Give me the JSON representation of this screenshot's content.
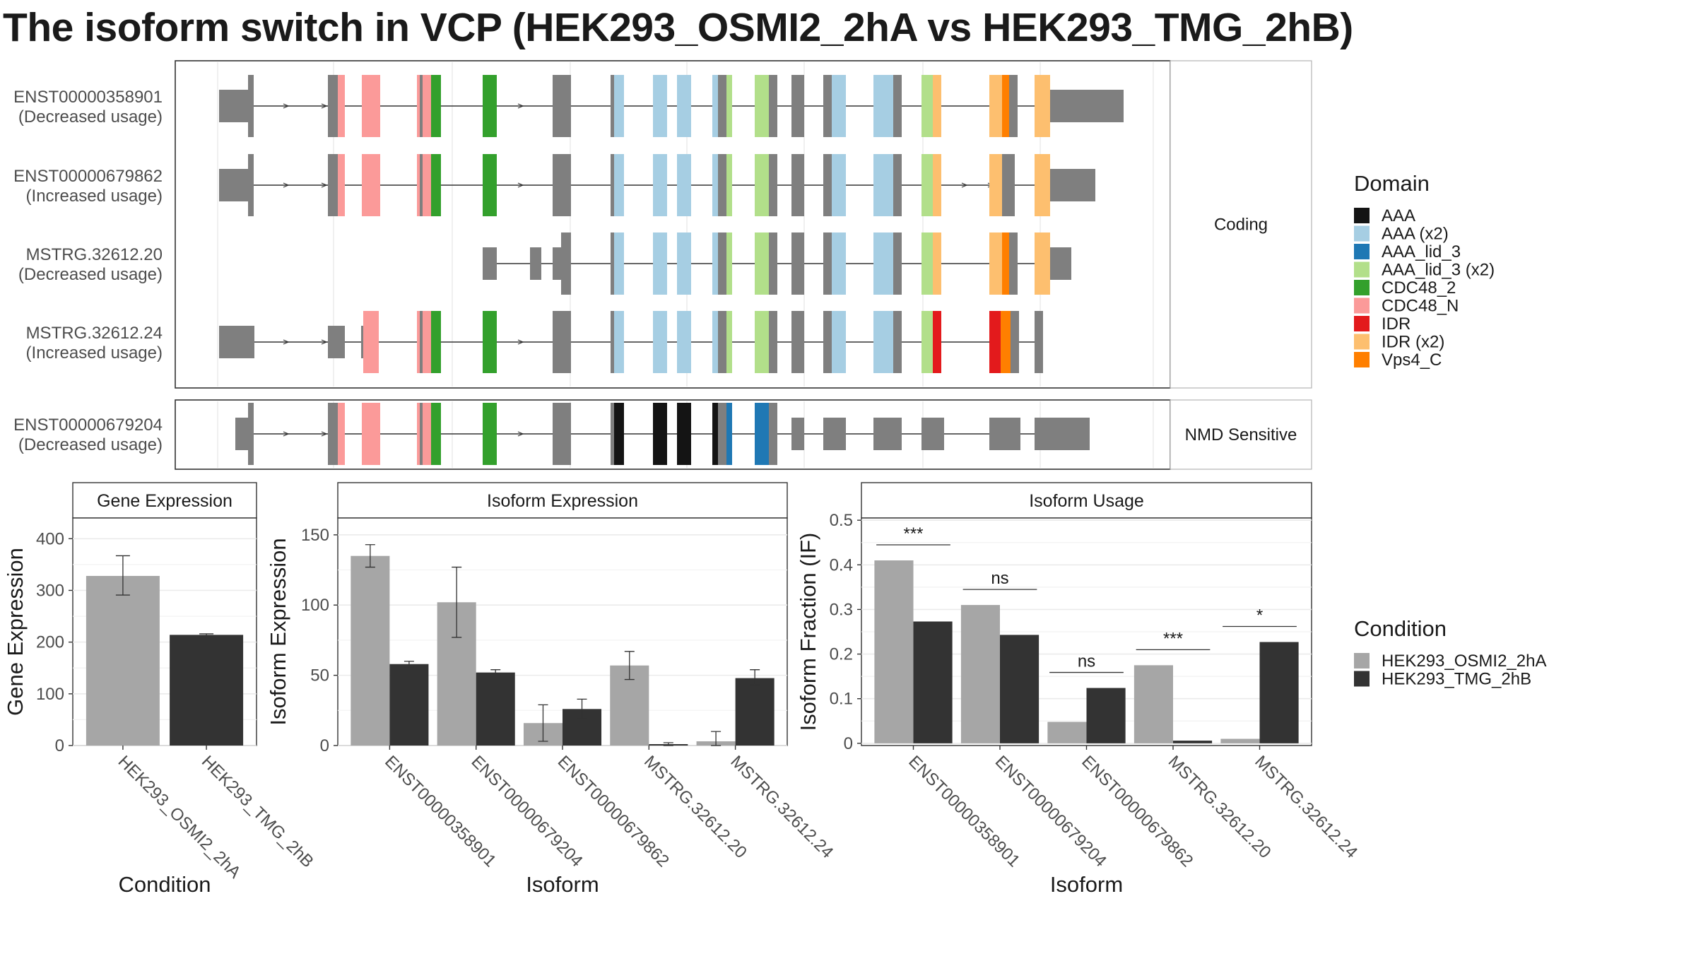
{
  "title": "The isoform switch in VCP (HEK293_OSMI2_2hA vs HEK293_TMG_2hB)",
  "colors": {
    "domains": {
      "AAA": "#141414",
      "AAA (x2)": "#a6cee3",
      "AAA_lid_3": "#1f78b4",
      "AAA_lid_3 (x2)": "#b2df8a",
      "CDC48_2": "#33a02c",
      "CDC48_N": "#fb9a99",
      "IDR": "#e31a1c",
      "IDR (x2)": "#fdbf6f",
      "Vps4_C": "#ff7f00"
    },
    "exon": "#7f7f7f",
    "condition_a": "#a6a6a6",
    "condition_b": "#333333"
  },
  "structure": {
    "groups": [
      {
        "label": "Coding",
        "transcripts": [
          {
            "id": "ENST00000358901",
            "usage": "(Decreased usage)"
          },
          {
            "id": "ENST00000679862",
            "usage": "(Increased usage)"
          },
          {
            "id": "MSTRG.32612.20",
            "usage": "(Decreased usage)"
          },
          {
            "id": "MSTRG.32612.24",
            "usage": "(Increased usage)"
          }
        ]
      },
      {
        "label": "NMD Sensitive",
        "transcripts": [
          {
            "id": "ENST00000679204",
            "usage": "(Decreased usage)"
          }
        ]
      }
    ]
  },
  "legends": {
    "domain": {
      "title": "Domain",
      "items": [
        "AAA",
        "AAA (x2)",
        "AAA_lid_3",
        "AAA_lid_3 (x2)",
        "CDC48_2",
        "CDC48_N",
        "IDR",
        "IDR (x2)",
        "Vps4_C"
      ]
    },
    "condition": {
      "title": "Condition",
      "items": [
        "HEK293_OSMI2_2hA",
        "HEK293_TMG_2hB"
      ]
    }
  },
  "chart_data": [
    {
      "type": "bar",
      "title": "Gene Expression",
      "xlabel": "Condition",
      "ylabel": "Gene Expression",
      "ylim": [
        0,
        440
      ],
      "yticks": [
        0,
        100,
        200,
        300,
        400
      ],
      "categories": [
        "HEK293_OSMI2_2hA",
        "HEK293_TMG_2hB"
      ],
      "values": [
        328,
        214
      ],
      "errors": [
        [
          291,
          367
        ],
        [
          212,
          216
        ]
      ]
    },
    {
      "type": "bar",
      "title": "Isoform Expression",
      "xlabel": "Isoform",
      "ylabel": "Isoform Expression",
      "ylim": [
        0,
        162
      ],
      "yticks": [
        0,
        50,
        100,
        150
      ],
      "categories": [
        "ENST00000358901",
        "ENST00000679204",
        "ENST00000679862",
        "MSTRG.32612.20",
        "MSTRG.32612.24"
      ],
      "series": [
        {
          "name": "HEK293_OSMI2_2hA",
          "values": [
            135,
            102,
            16,
            57,
            3
          ],
          "errors": [
            [
              127,
              143
            ],
            [
              77,
              127
            ],
            [
              3,
              29
            ],
            [
              47,
              67
            ],
            [
              0,
              10
            ]
          ]
        },
        {
          "name": "HEK293_TMG_2hB",
          "values": [
            58,
            52,
            26,
            1,
            48
          ],
          "errors": [
            [
              56,
              60
            ],
            [
              50,
              54
            ],
            [
              19,
              33
            ],
            [
              0,
              2
            ],
            [
              43,
              54
            ]
          ]
        }
      ]
    },
    {
      "type": "bar",
      "title": "Isoform Usage",
      "xlabel": "Isoform",
      "ylabel": "Isoform Fraction (IF)",
      "ylim": [
        -0.005,
        0.505
      ],
      "yticks": [
        0.0,
        0.1,
        0.2,
        0.3,
        0.4,
        0.5
      ],
      "categories": [
        "ENST00000358901",
        "ENST00000679204",
        "ENST00000679862",
        "MSTRG.32612.20",
        "MSTRG.32612.24"
      ],
      "series": [
        {
          "name": "HEK293_OSMI2_2hA",
          "values": [
            0.41,
            0.31,
            0.048,
            0.175,
            0.01
          ]
        },
        {
          "name": "HEK293_TMG_2hB",
          "values": [
            0.273,
            0.243,
            0.124,
            0.006,
            0.227
          ]
        }
      ],
      "significance": [
        "***",
        "ns",
        "ns",
        "***",
        "*"
      ]
    }
  ]
}
